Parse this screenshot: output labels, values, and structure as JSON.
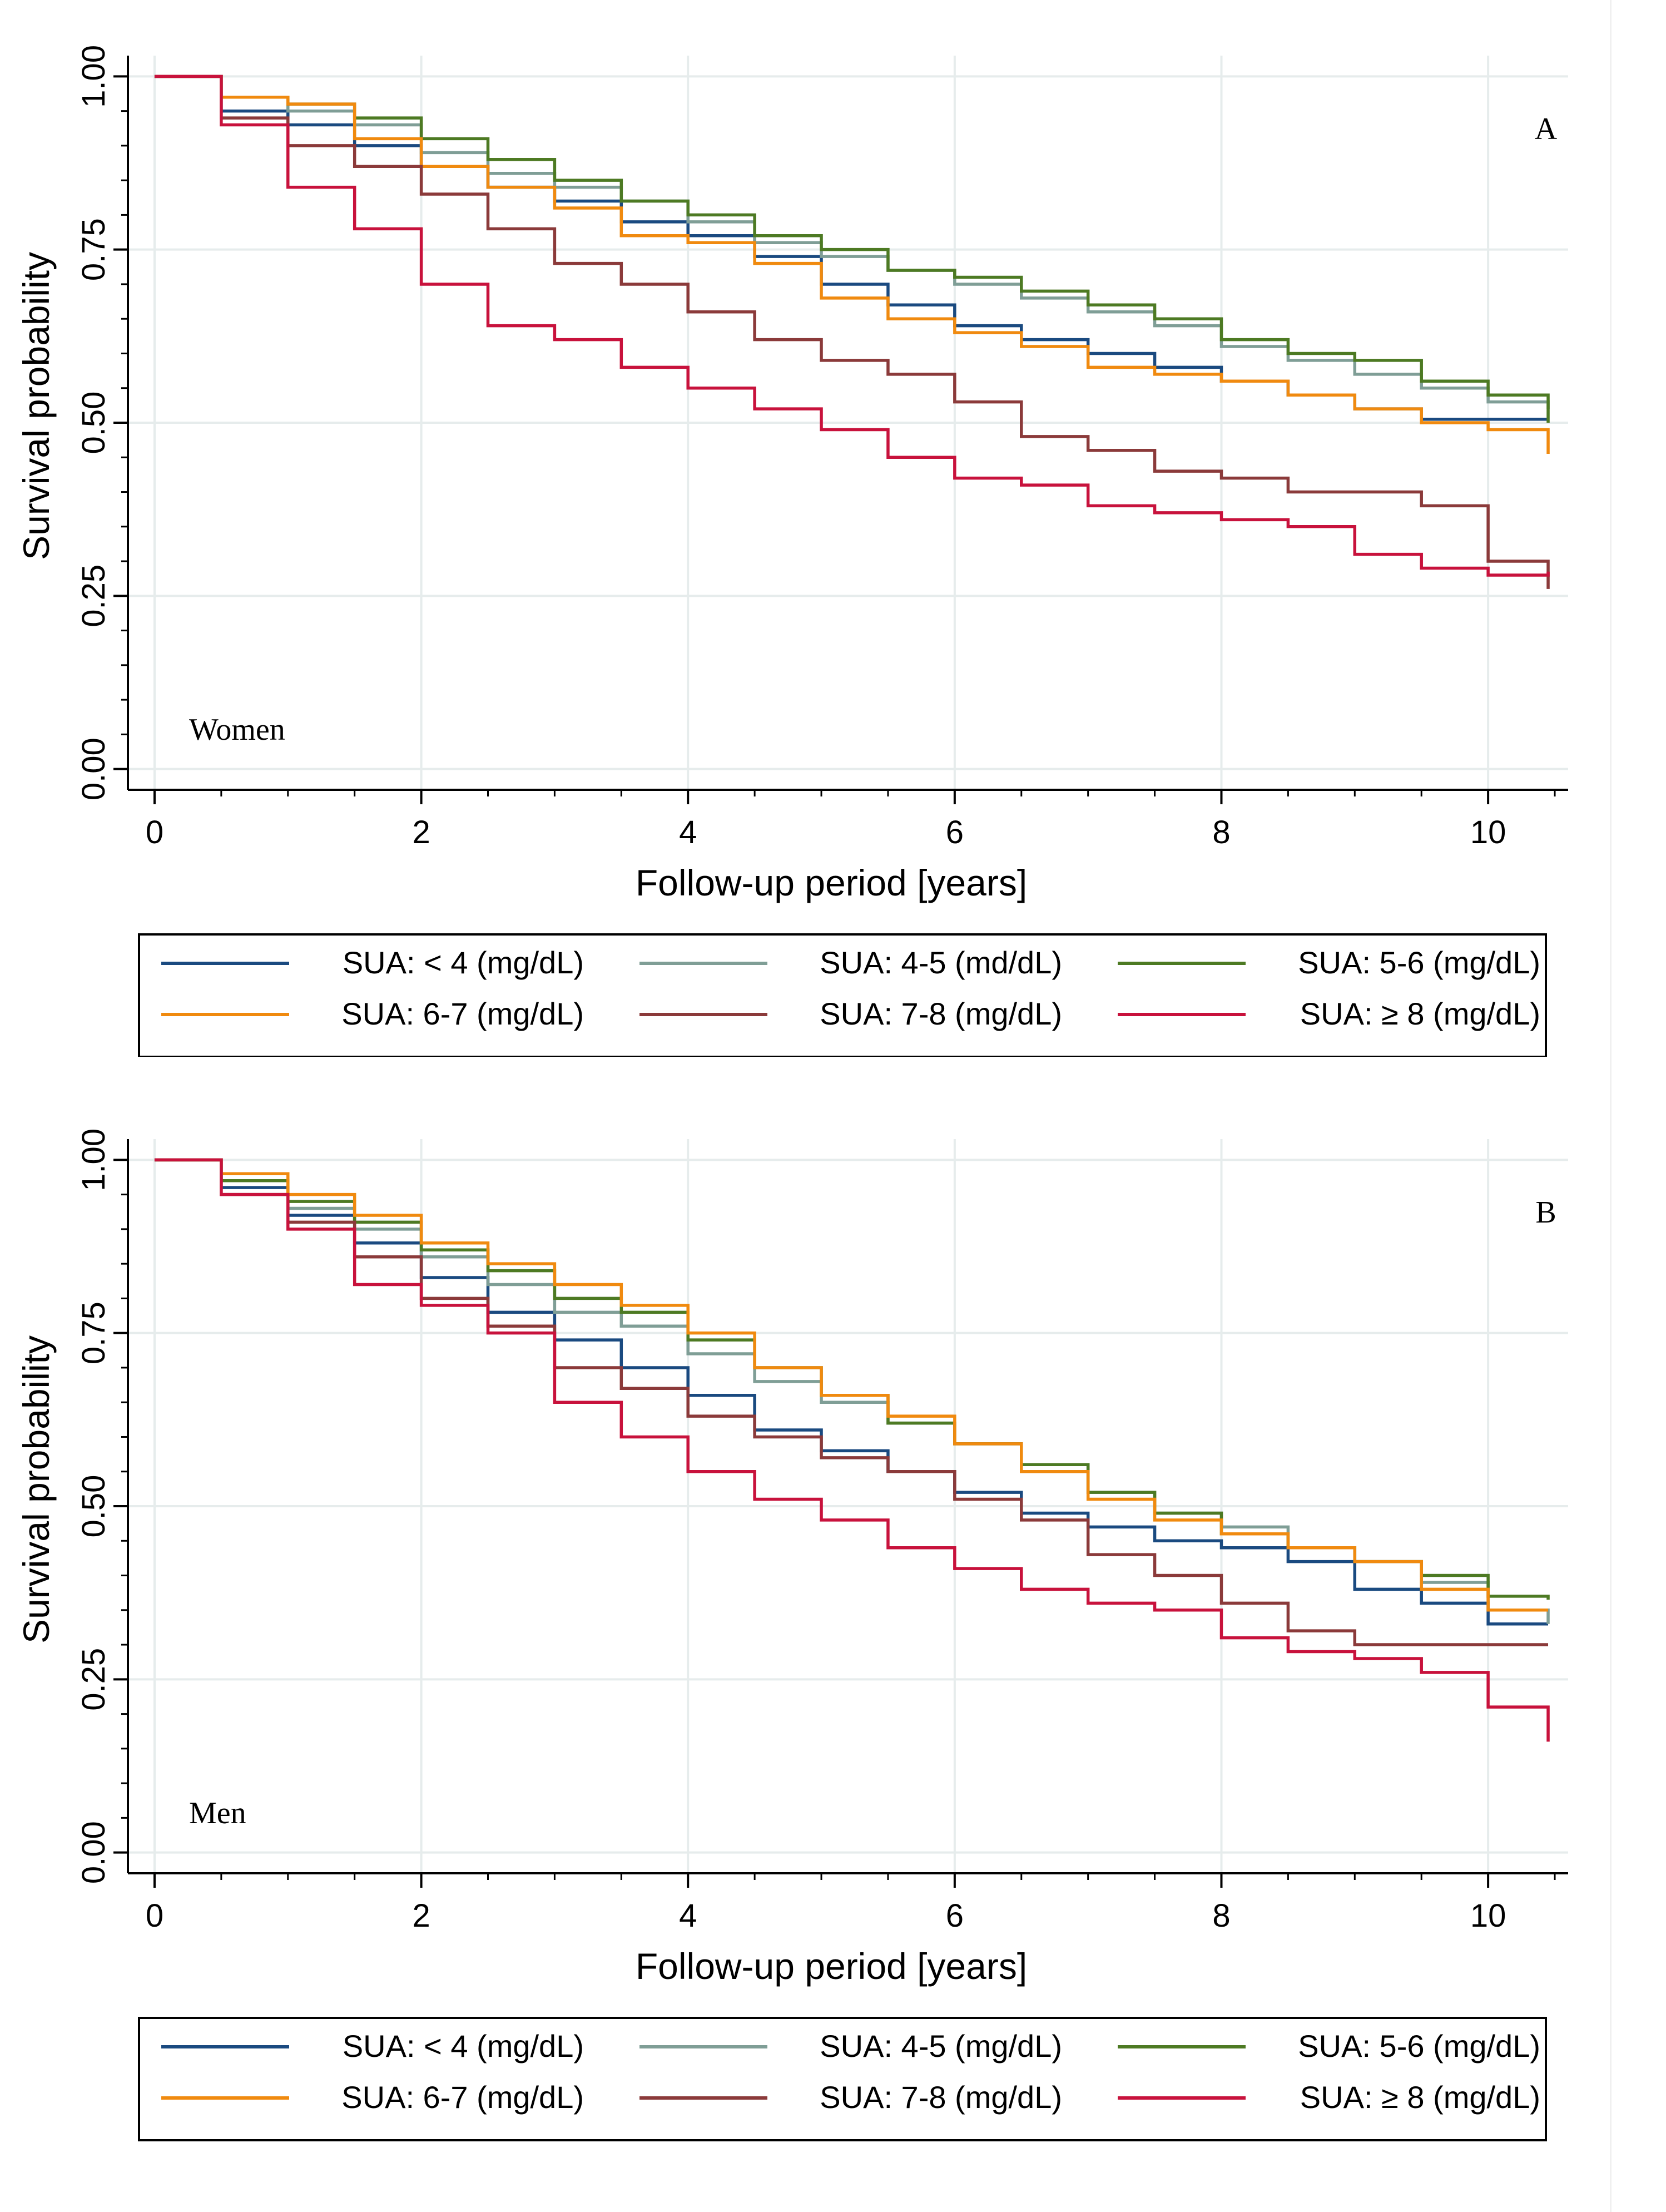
{
  "figure": {
    "colors": {
      "grid": "#e6ecec",
      "axis": "#000000",
      "series": [
        "#1a4a80",
        "#7f9e96",
        "#4d7a23",
        "#f08a0f",
        "#8b3a3a",
        "#c8123c"
      ]
    }
  },
  "chart_data": [
    {
      "type": "line",
      "panel_label": "A",
      "group_label": "Women",
      "xlabel": "Follow-up period [years]",
      "ylabel": "Survival probability",
      "xlim": [
        -0.2,
        10.6
      ],
      "ylim": [
        -0.03,
        1.03
      ],
      "xticks": [
        0,
        2,
        4,
        6,
        8,
        10
      ],
      "xtick_labels": [
        "0",
        "2",
        "4",
        "6",
        "8",
        "10"
      ],
      "yticks": [
        0,
        0.25,
        0.5,
        0.75,
        1
      ],
      "ytick_labels": [
        "0.00",
        "0.25",
        "0.50",
        "0.75",
        "1.00"
      ],
      "grid": true,
      "series": [
        {
          "name": "SUA: < 4 (mg/dL)",
          "color": "#1a4a80",
          "x": [
            0,
            0.5,
            1,
            1.5,
            2,
            2.5,
            3,
            3.5,
            4,
            4.5,
            5,
            5.5,
            6,
            6.5,
            7,
            7.5,
            8,
            8.5,
            9,
            9.5,
            10,
            10.45
          ],
          "y": [
            1,
            0.95,
            0.93,
            0.9,
            0.87,
            0.84,
            0.82,
            0.79,
            0.77,
            0.74,
            0.7,
            0.67,
            0.64,
            0.62,
            0.6,
            0.58,
            0.56,
            0.54,
            0.52,
            0.505,
            0.505,
            0.505
          ]
        },
        {
          "name": "SUA: 4-5 (md/dL)",
          "color": "#7f9e96",
          "x": [
            0,
            0.5,
            1,
            1.5,
            2,
            2.5,
            3,
            3.5,
            4,
            4.5,
            5,
            5.5,
            6,
            6.5,
            7,
            7.5,
            8,
            8.5,
            9,
            9.5,
            10,
            10.45
          ],
          "y": [
            1,
            0.97,
            0.95,
            0.93,
            0.89,
            0.86,
            0.84,
            0.82,
            0.79,
            0.76,
            0.74,
            0.72,
            0.7,
            0.68,
            0.66,
            0.64,
            0.61,
            0.59,
            0.57,
            0.55,
            0.53,
            0.52
          ]
        },
        {
          "name": "SUA: 5-6 (mg/dL)",
          "color": "#4d7a23",
          "x": [
            0,
            0.5,
            1,
            1.5,
            2,
            2.5,
            3,
            3.5,
            4,
            4.5,
            5,
            5.5,
            6,
            6.5,
            7,
            7.5,
            8,
            8.5,
            9,
            9.5,
            10,
            10.45
          ],
          "y": [
            1,
            0.97,
            0.96,
            0.94,
            0.91,
            0.88,
            0.85,
            0.82,
            0.8,
            0.77,
            0.75,
            0.72,
            0.71,
            0.69,
            0.67,
            0.65,
            0.62,
            0.6,
            0.59,
            0.56,
            0.54,
            0.5
          ]
        },
        {
          "name": "SUA: 6-7 (mg/dL)",
          "color": "#f08a0f",
          "x": [
            0,
            0.5,
            1,
            1.5,
            2,
            2.5,
            3,
            3.5,
            4,
            4.5,
            5,
            5.5,
            6,
            6.5,
            7,
            7.5,
            8,
            8.5,
            9,
            9.5,
            10,
            10.45
          ],
          "y": [
            1,
            0.97,
            0.96,
            0.91,
            0.87,
            0.84,
            0.81,
            0.77,
            0.76,
            0.73,
            0.68,
            0.65,
            0.63,
            0.61,
            0.58,
            0.57,
            0.56,
            0.54,
            0.52,
            0.5,
            0.49,
            0.455
          ]
        },
        {
          "name": "SUA: 7-8 (mg/dL)",
          "color": "#8b3a3a",
          "x": [
            0,
            0.5,
            1,
            1.5,
            2,
            2.5,
            3,
            3.5,
            4,
            4.5,
            5,
            5.5,
            6,
            6.5,
            7,
            7.5,
            8,
            8.5,
            9,
            9.5,
            10,
            10.45
          ],
          "y": [
            1,
            0.94,
            0.9,
            0.87,
            0.83,
            0.78,
            0.73,
            0.7,
            0.66,
            0.62,
            0.59,
            0.57,
            0.53,
            0.48,
            0.46,
            0.43,
            0.42,
            0.4,
            0.4,
            0.38,
            0.3,
            0.26
          ]
        },
        {
          "name": "SUA: ≥ 8 (mg/dL)",
          "color": "#c8123c",
          "x": [
            0,
            0.5,
            1,
            1.5,
            2,
            2.5,
            3,
            3.5,
            4,
            4.5,
            5,
            5.5,
            6,
            6.5,
            7,
            7.5,
            8,
            8.5,
            9,
            9.5,
            10,
            10.45
          ],
          "y": [
            1,
            0.93,
            0.84,
            0.78,
            0.7,
            0.64,
            0.62,
            0.58,
            0.55,
            0.52,
            0.49,
            0.45,
            0.42,
            0.41,
            0.38,
            0.37,
            0.36,
            0.35,
            0.31,
            0.29,
            0.28,
            0.285
          ]
        }
      ],
      "legend": {
        "position": "bottom",
        "entries": [
          "SUA: < 4 (mg/dL)",
          "SUA: 4-5 (md/dL)",
          "SUA: 5-6 (mg/dL)",
          "SUA: 6-7 (mg/dL)",
          "SUA: 7-8 (mg/dL)",
          "SUA: ≥ 8 (mg/dL)"
        ]
      }
    },
    {
      "type": "line",
      "panel_label": "B",
      "group_label": "Men",
      "xlabel": "Follow-up period [years]",
      "ylabel": "Survival probability",
      "xlim": [
        -0.2,
        10.6
      ],
      "ylim": [
        -0.03,
        1.03
      ],
      "xticks": [
        0,
        2,
        4,
        6,
        8,
        10
      ],
      "xtick_labels": [
        "0",
        "2",
        "4",
        "6",
        "8",
        "10"
      ],
      "yticks": [
        0,
        0.25,
        0.5,
        0.75,
        1
      ],
      "ytick_labels": [
        "0.00",
        "0.25",
        "0.50",
        "0.75",
        "1.00"
      ],
      "grid": true,
      "series": [
        {
          "name": "SUA: < 4 (mg/dL)",
          "color": "#1a4a80",
          "x": [
            0,
            0.5,
            1,
            1.5,
            2,
            2.5,
            3,
            3.5,
            4,
            4.5,
            5,
            5.5,
            6,
            6.5,
            7,
            7.5,
            8,
            8.5,
            9,
            9.5,
            10,
            10.45
          ],
          "y": [
            1,
            0.96,
            0.92,
            0.88,
            0.83,
            0.78,
            0.74,
            0.7,
            0.66,
            0.61,
            0.58,
            0.55,
            0.52,
            0.49,
            0.47,
            0.45,
            0.44,
            0.42,
            0.38,
            0.36,
            0.33,
            0.33
          ]
        },
        {
          "name": "SUA: 4-5 (mg/dL)",
          "color": "#7f9e96",
          "x": [
            0,
            0.5,
            1,
            1.5,
            2,
            2.5,
            3,
            3.5,
            4,
            4.5,
            5,
            5.5,
            6,
            6.5,
            7,
            7.5,
            8,
            8.5,
            9,
            9.5,
            10,
            10.45
          ],
          "y": [
            1,
            0.97,
            0.93,
            0.9,
            0.86,
            0.82,
            0.78,
            0.76,
            0.72,
            0.68,
            0.65,
            0.62,
            0.59,
            0.56,
            0.52,
            0.49,
            0.47,
            0.44,
            0.42,
            0.39,
            0.35,
            0.33
          ]
        },
        {
          "name": "SUA: 5-6 (mg/dL)",
          "color": "#4d7a23",
          "x": [
            0,
            0.5,
            1,
            1.5,
            2,
            2.5,
            3,
            3.5,
            4,
            4.5,
            5,
            5.5,
            6,
            6.5,
            7,
            7.5,
            8,
            8.5,
            9,
            9.5,
            10,
            10.45
          ],
          "y": [
            1,
            0.97,
            0.94,
            0.91,
            0.87,
            0.84,
            0.8,
            0.78,
            0.74,
            0.7,
            0.66,
            0.62,
            0.59,
            0.56,
            0.52,
            0.49,
            0.46,
            0.44,
            0.42,
            0.4,
            0.37,
            0.365
          ]
        },
        {
          "name": "SUA: 6-7 (mg/dL)",
          "color": "#f08a0f",
          "x": [
            0,
            0.5,
            1,
            1.5,
            2,
            2.5,
            3,
            3.5,
            4,
            4.5,
            5,
            5.5,
            6,
            6.5,
            7,
            7.5,
            8,
            8.5,
            9,
            9.5,
            10,
            10.45
          ],
          "y": [
            1,
            0.98,
            0.95,
            0.92,
            0.88,
            0.85,
            0.82,
            0.79,
            0.75,
            0.7,
            0.66,
            0.63,
            0.59,
            0.55,
            0.51,
            0.48,
            0.46,
            0.44,
            0.42,
            0.38,
            0.35,
            0.35
          ]
        },
        {
          "name": "SUA: 7-8 (mg/dL)",
          "color": "#8b3a3a",
          "x": [
            0,
            0.5,
            1,
            1.5,
            2,
            2.5,
            3,
            3.5,
            4,
            4.5,
            5,
            5.5,
            6,
            6.5,
            7,
            7.5,
            8,
            8.5,
            9,
            9.5,
            10,
            10.45
          ],
          "y": [
            1,
            0.95,
            0.91,
            0.86,
            0.8,
            0.76,
            0.7,
            0.67,
            0.63,
            0.6,
            0.57,
            0.55,
            0.51,
            0.48,
            0.43,
            0.4,
            0.36,
            0.32,
            0.3,
            0.3,
            0.3,
            0.3
          ]
        },
        {
          "name": "SUA: ≥ 8 (mg/dL)",
          "color": "#c8123c",
          "x": [
            0,
            0.5,
            1,
            1.5,
            2,
            2.5,
            3,
            3.5,
            4,
            4.5,
            5,
            5.5,
            6,
            6.5,
            7,
            7.5,
            8,
            8.5,
            9,
            9.5,
            10,
            10.45
          ],
          "y": [
            1,
            0.95,
            0.9,
            0.82,
            0.79,
            0.75,
            0.65,
            0.6,
            0.55,
            0.51,
            0.48,
            0.44,
            0.41,
            0.38,
            0.36,
            0.35,
            0.31,
            0.29,
            0.28,
            0.26,
            0.21,
            0.16
          ]
        }
      ],
      "legend": {
        "position": "bottom",
        "entries": [
          "SUA: < 4 (mg/dL)",
          "SUA: 4-5 (mg/dL)",
          "SUA: 5-6 (mg/dL)",
          "SUA: 6-7 (mg/dL)",
          "SUA: 7-8 (mg/dL)",
          "SUA: ≥ 8 (mg/dL)"
        ]
      }
    }
  ]
}
